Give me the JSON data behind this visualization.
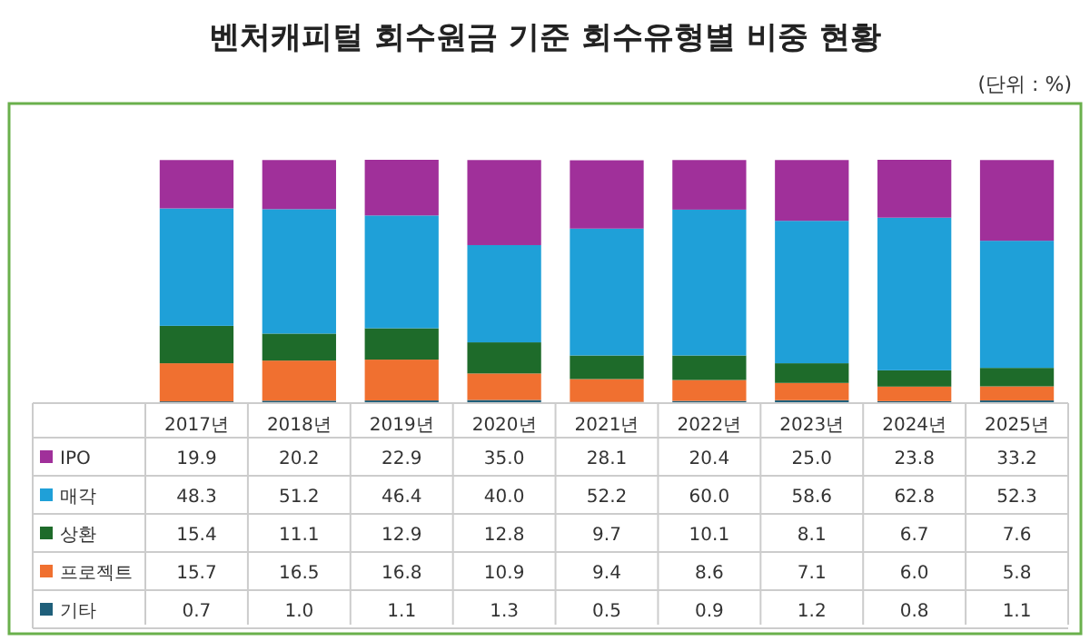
{
  "chart_data": {
    "type": "bar",
    "stacked": true,
    "legend": "bottom left",
    "title": "벤처캐피털 회수원금 기준 회수유형별 비중 현황",
    "annotations": [
      "(단위 : %)"
    ],
    "categories": [
      "2017년",
      "2018년",
      "2019년",
      "2020년",
      "2021년",
      "2022년",
      "2023년",
      "2024년",
      "2025년"
    ],
    "series": [
      {
        "name": "기타",
        "color": "#1f5f7a",
        "values": [
          0.7,
          1.0,
          1.1,
          1.3,
          0.5,
          0.9,
          1.2,
          0.8,
          1.1
        ],
        "value_labels": [
          "0.7",
          "1.0",
          "1.1",
          "1.3",
          "0.5",
          "0.9",
          "1.2",
          "0.8",
          "1.1"
        ]
      },
      {
        "name": "프로젝트",
        "color": "#f07030",
        "values": [
          15.7,
          16.5,
          16.8,
          10.9,
          9.4,
          8.6,
          7.1,
          6.0,
          5.8
        ],
        "value_labels": [
          "15.7",
          "16.5",
          "16.8",
          "10.9",
          "9.4",
          "8.6",
          "7.1",
          "6.0",
          "5.8"
        ]
      },
      {
        "name": "상환",
        "color": "#1e6b2a",
        "values": [
          15.4,
          11.1,
          12.9,
          12.8,
          9.7,
          10.1,
          8.1,
          6.7,
          7.6
        ],
        "value_labels": [
          "15.4",
          "11.1",
          "12.9",
          "12.8",
          "9.7",
          "10.1",
          "8.1",
          "6.7",
          "7.6"
        ]
      },
      {
        "name": "매각",
        "color": "#1fa0d8",
        "values": [
          48.3,
          51.2,
          46.4,
          40.0,
          52.2,
          60.0,
          58.6,
          62.8,
          52.3
        ],
        "value_labels": [
          "48.3",
          "51.2",
          "46.4",
          "40.0",
          "52.2",
          "60.0",
          "58.6",
          "62.8",
          "52.3"
        ]
      },
      {
        "name": "IPO",
        "color": "#a0309a",
        "values": [
          19.9,
          20.2,
          22.9,
          35.0,
          28.1,
          20.4,
          25.0,
          23.8,
          33.2
        ],
        "value_labels": [
          "19.9",
          "20.2",
          "22.9",
          "35.0",
          "28.1",
          "20.4",
          "25.0",
          "23.8",
          "33.2"
        ]
      }
    ]
  }
}
